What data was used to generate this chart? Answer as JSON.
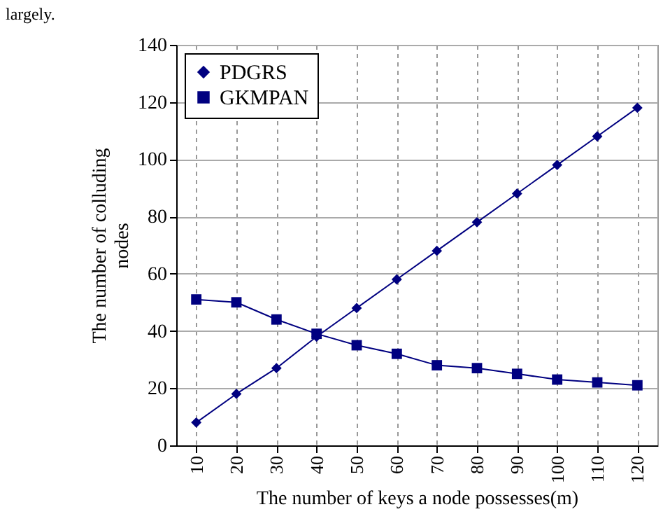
{
  "chart_data": {
    "type": "line",
    "xlabel": "The number of keys a node possesses(m)",
    "ylabel": "The number of colluding nodes",
    "annotations": [
      "largely."
    ],
    "categories": [
      "10",
      "20",
      "30",
      "40",
      "50",
      "60",
      "70",
      "80",
      "90",
      "100",
      "110",
      "120"
    ],
    "series": [
      {
        "name": "PDGRS",
        "color": "#000080",
        "marker": "diamond",
        "values": [
          8,
          18,
          27,
          38,
          48,
          58,
          68,
          78,
          88,
          98,
          108,
          118
        ]
      },
      {
        "name": "GKMPAN",
        "color": "#000080",
        "marker": "square",
        "values": [
          51,
          50,
          44,
          39,
          35,
          32,
          28,
          27,
          25,
          23,
          22,
          21
        ]
      }
    ],
    "ylim": [
      0,
      140
    ],
    "yticks": [
      0,
      20,
      40,
      60,
      80,
      100,
      120,
      140
    ],
    "grid": true,
    "legend": "top left",
    "line_style": "solid"
  }
}
